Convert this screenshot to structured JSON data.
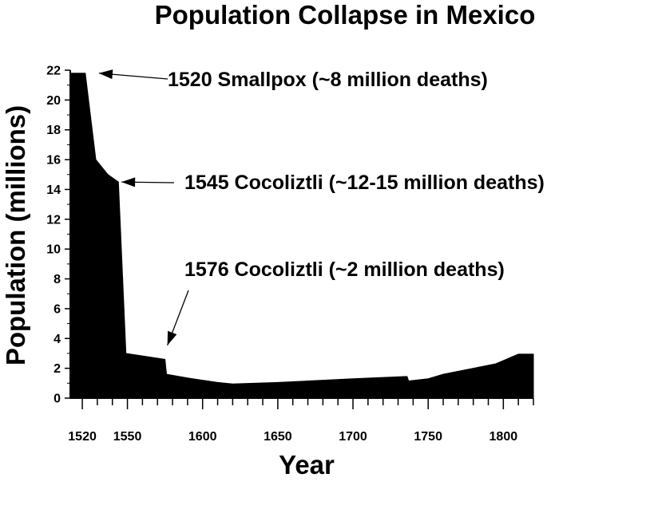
{
  "chart_data": {
    "type": "area",
    "title": "Population Collapse in Mexico",
    "xlabel": "Year",
    "ylabel": "Population (millions)",
    "xlim": [
      1512,
      1820
    ],
    "ylim": [
      0,
      22
    ],
    "x_ticks": [
      1520,
      1550,
      1600,
      1650,
      1700,
      1750,
      1800
    ],
    "y_ticks": [
      0,
      2,
      4,
      6,
      8,
      10,
      12,
      14,
      16,
      18,
      20,
      22
    ],
    "grid": false,
    "legend": "none",
    "fill_color": "#000000",
    "series": [
      {
        "x": [
          1512,
          1522,
          1529,
          1537,
          1544,
          1549,
          1575,
          1576,
          1590,
          1600,
          1610,
          1620,
          1650,
          1700,
          1736,
          1737,
          1750,
          1760,
          1780,
          1795,
          1810,
          1820
        ],
        "values": [
          21.8,
          21.8,
          16.0,
          15.0,
          14.5,
          3.0,
          2.6,
          1.6,
          1.35,
          1.2,
          1.05,
          0.95,
          1.05,
          1.3,
          1.45,
          1.15,
          1.3,
          1.6,
          2.0,
          2.3,
          2.95,
          2.95
        ]
      }
    ],
    "annotations": [
      {
        "label": "1520  Smallpox (~8 million deaths)",
        "target_year": 1530,
        "target_value": 21.8
      },
      {
        "label": "1545  Cocoliztli (~12-15 million deaths)",
        "target_year": 1545,
        "target_value": 14.5
      },
      {
        "label": "1576  Cocoliztli (~2 million deaths)",
        "target_year": 1575,
        "target_value": 2.9
      }
    ]
  }
}
